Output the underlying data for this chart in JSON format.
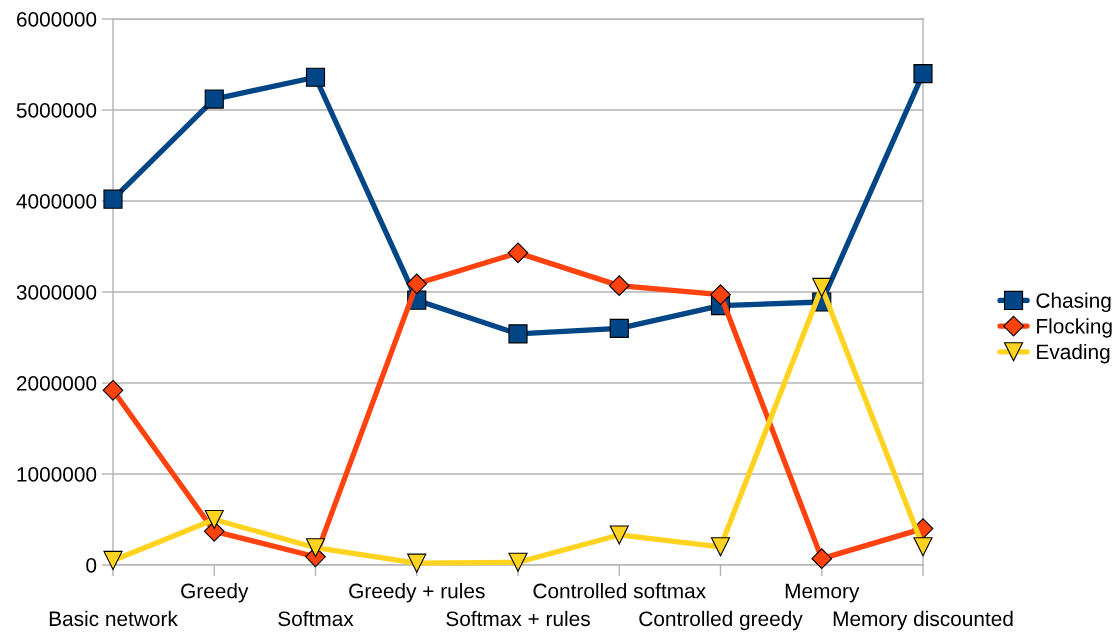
{
  "chart_data": {
    "type": "line",
    "categories": [
      "Basic network",
      "Greedy",
      "Softmax",
      "Greedy + rules",
      "Softmax + rules",
      "Controlled softmax",
      "Controlled greedy",
      "Memory",
      "Memory discounted"
    ],
    "series": [
      {
        "name": "Chasing",
        "color": "#004586",
        "marker": "square",
        "values": [
          4020000,
          5120000,
          5360000,
          2910000,
          2540000,
          2600000,
          2850000,
          2890000,
          5400000
        ]
      },
      {
        "name": "Flocking",
        "color": "#ff420e",
        "marker": "diamond",
        "values": [
          1920000,
          370000,
          90000,
          3090000,
          3430000,
          3070000,
          2970000,
          70000,
          400000
        ]
      },
      {
        "name": "Evading",
        "color": "#ffd320",
        "marker": "triangle",
        "values": [
          50000,
          500000,
          190000,
          20000,
          30000,
          330000,
          200000,
          3050000,
          200000
        ]
      }
    ],
    "ylim": [
      0,
      6000000
    ],
    "yticks": [
      0,
      1000000,
      2000000,
      3000000,
      4000000,
      5000000,
      6000000
    ],
    "grid": "y",
    "legend": "right",
    "line_style": "solid"
  }
}
